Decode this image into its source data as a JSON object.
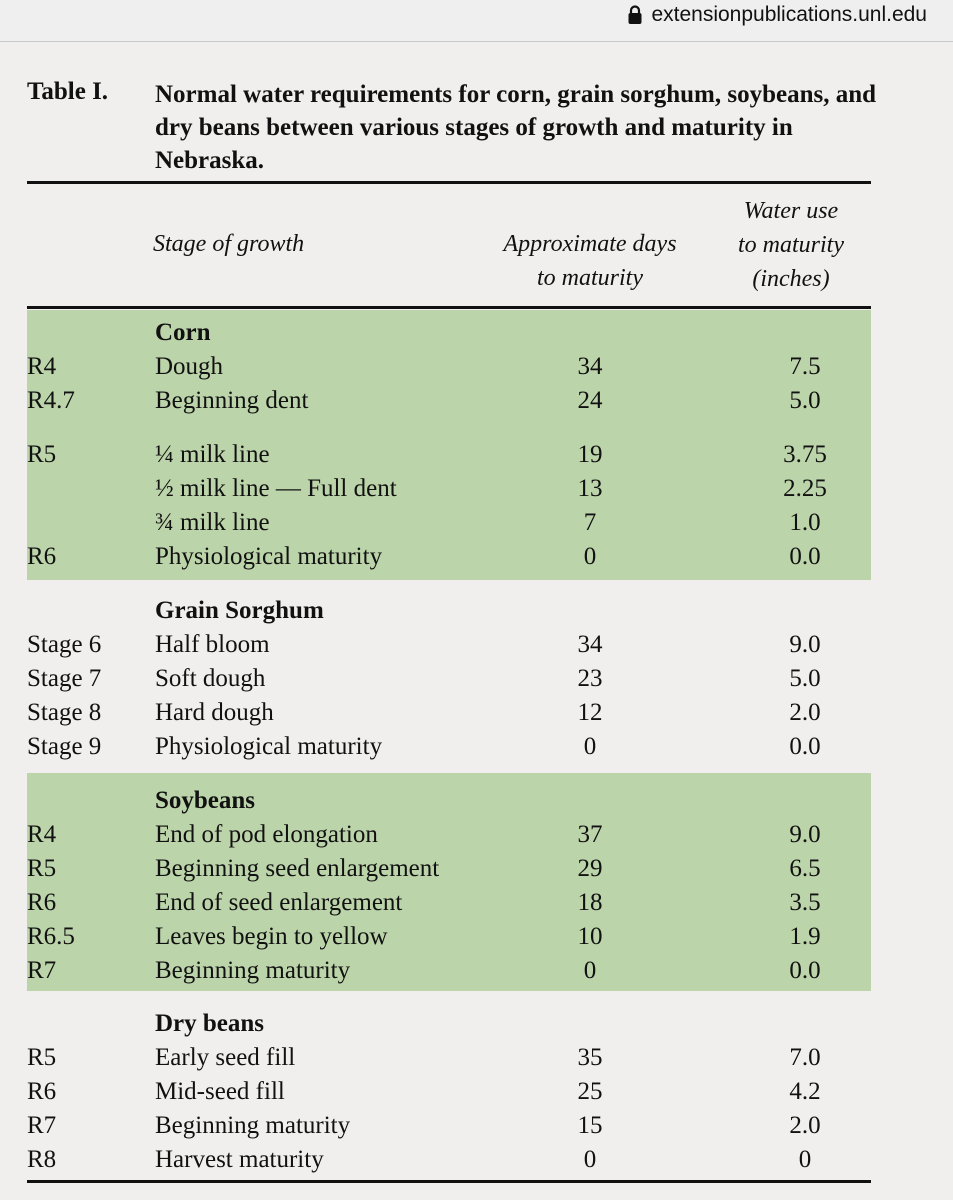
{
  "browser": {
    "url": "extensionpublications.unl.edu"
  },
  "table": {
    "label": "Table I.",
    "title": "Normal water requirements for corn, grain sorghum, soybeans, and dry beans between various stages of growth and maturity in Nebraska.",
    "headers": {
      "stage": "Stage of growth",
      "days": "Approximate days to maturity",
      "water": "Water use to maturity (inches)"
    },
    "sections": [
      {
        "name": "Corn",
        "rows": [
          {
            "code": "R4",
            "stage": "Dough",
            "days": "34",
            "water": "7.5"
          },
          {
            "code": "R4.7",
            "stage": "Beginning dent",
            "days": "24",
            "water": "5.0"
          },
          {
            "code": "R5",
            "stage": "¼ milk line",
            "days": "19",
            "water": "3.75"
          },
          {
            "code": "",
            "stage": "½ milk line — Full dent",
            "days": "13",
            "water": "2.25"
          },
          {
            "code": "",
            "stage": "¾ milk line",
            "days": "7",
            "water": "1.0"
          },
          {
            "code": "R6",
            "stage": "Physiological maturity",
            "days": "0",
            "water": "0.0"
          }
        ]
      },
      {
        "name": "Grain Sorghum",
        "rows": [
          {
            "code": "Stage 6",
            "stage": "Half bloom",
            "days": "34",
            "water": "9.0"
          },
          {
            "code": "Stage 7",
            "stage": "Soft dough",
            "days": "23",
            "water": "5.0"
          },
          {
            "code": "Stage 8",
            "stage": "Hard dough",
            "days": "12",
            "water": "2.0"
          },
          {
            "code": "Stage 9",
            "stage": "Physiological maturity",
            "days": "0",
            "water": "0.0"
          }
        ]
      },
      {
        "name": "Soybeans",
        "rows": [
          {
            "code": "R4",
            "stage": "End of pod elongation",
            "days": "37",
            "water": "9.0"
          },
          {
            "code": "R5",
            "stage": "Beginning seed enlargement",
            "days": "29",
            "water": "6.5"
          },
          {
            "code": "R6",
            "stage": "End of seed enlargement",
            "days": "18",
            "water": "3.5"
          },
          {
            "code": "R6.5",
            "stage": "Leaves begin to yellow",
            "days": "10",
            "water": "1.9"
          },
          {
            "code": "R7",
            "stage": "Beginning maturity",
            "days": "0",
            "water": "0.0"
          }
        ]
      },
      {
        "name": "Dry beans",
        "rows": [
          {
            "code": "R5",
            "stage": "Early seed fill",
            "days": "35",
            "water": "7.0"
          },
          {
            "code": "R6",
            "stage": "Mid-seed fill",
            "days": "25",
            "water": "4.2"
          },
          {
            "code": "R7",
            "stage": "Beginning maturity",
            "days": "15",
            "water": "2.0"
          },
          {
            "code": "R8",
            "stage": "Harvest maturity",
            "days": "0",
            "water": "0"
          }
        ]
      }
    ]
  }
}
